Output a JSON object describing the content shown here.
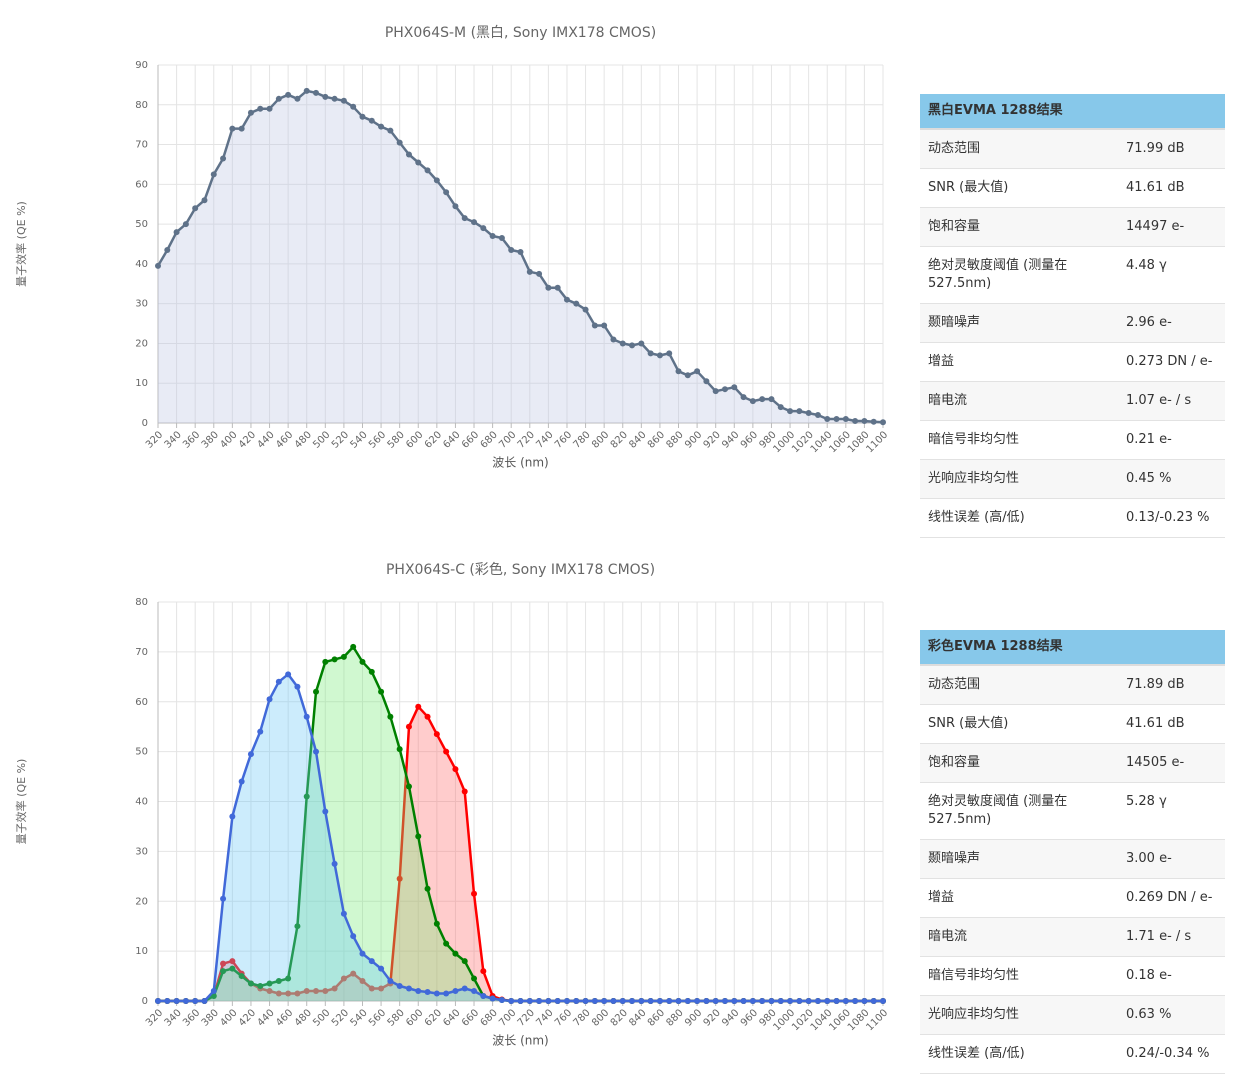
{
  "chart_data": [
    {
      "type": "line",
      "title": "PHX064S-M (黑白, Sony IMX178 CMOS)",
      "x_label": "波长 (nm)",
      "y_label": "量子效率 (QE %)",
      "x": [
        320,
        330,
        340,
        350,
        360,
        370,
        380,
        390,
        400,
        410,
        420,
        430,
        440,
        450,
        460,
        470,
        480,
        490,
        500,
        510,
        520,
        530,
        540,
        550,
        560,
        570,
        580,
        590,
        600,
        610,
        620,
        630,
        640,
        650,
        660,
        670,
        680,
        690,
        700,
        710,
        720,
        730,
        740,
        750,
        760,
        770,
        780,
        790,
        800,
        810,
        820,
        830,
        840,
        850,
        860,
        870,
        880,
        890,
        900,
        910,
        920,
        930,
        940,
        950,
        960,
        970,
        980,
        990,
        1000,
        1010,
        1020,
        1030,
        1040,
        1050,
        1060,
        1070,
        1080,
        1090,
        1100
      ],
      "series": [
        {
          "color": "#5f7289",
          "fill": "rgba(190,198,225,0.35)",
          "values": [
            39.5,
            43.5,
            48,
            50,
            54,
            56,
            62.5,
            66.5,
            74,
            74,
            78,
            79,
            79,
            81.5,
            82.5,
            81.5,
            83.5,
            83,
            82,
            81.5,
            81,
            79.5,
            77,
            76,
            74.5,
            73.5,
            70.5,
            67.5,
            65.5,
            63.5,
            61,
            58,
            54.5,
            51.5,
            50.5,
            49,
            47,
            46.5,
            43.5,
            43,
            38,
            37.5,
            34,
            34,
            31,
            30,
            28.5,
            24.5,
            24.5,
            21,
            20,
            19.5,
            20,
            17.5,
            17,
            17.5,
            13,
            12,
            13,
            10.5,
            8,
            8.5,
            9,
            6.5,
            5.5,
            6,
            6,
            4,
            3,
            3,
            2.5,
            2,
            1,
            1,
            1,
            0.5,
            0.5,
            0.3,
            0.2
          ]
        }
      ],
      "xlim": [
        320,
        1100
      ],
      "ylim": [
        0,
        90
      ],
      "xticks": [
        320,
        340,
        360,
        380,
        400,
        420,
        440,
        460,
        480,
        500,
        520,
        540,
        560,
        580,
        600,
        620,
        640,
        660,
        680,
        700,
        720,
        740,
        760,
        780,
        800,
        820,
        840,
        860,
        880,
        900,
        920,
        940,
        960,
        980,
        1000,
        1020,
        1040,
        1060,
        1080,
        1100
      ],
      "yticks": [
        0,
        10,
        20,
        30,
        40,
        50,
        60,
        70,
        80,
        90
      ],
      "grid": true
    },
    {
      "type": "line",
      "title": "PHX064S-C (彩色, Sony IMX178 CMOS)",
      "x_label": "波长 (nm)",
      "y_label": "量子效率 (QE %)",
      "x": [
        320,
        330,
        340,
        350,
        360,
        370,
        380,
        390,
        400,
        410,
        420,
        430,
        440,
        450,
        460,
        470,
        480,
        490,
        500,
        510,
        520,
        530,
        540,
        550,
        560,
        570,
        580,
        590,
        600,
        610,
        620,
        630,
        640,
        650,
        660,
        670,
        680,
        690,
        700,
        710,
        720,
        730,
        740,
        750,
        760,
        770,
        780,
        790,
        800,
        810,
        820,
        830,
        840,
        850,
        860,
        870,
        880,
        890,
        900,
        910,
        920,
        930,
        940,
        950,
        960,
        970,
        980,
        990,
        1000,
        1010,
        1020,
        1030,
        1040,
        1050,
        1060,
        1070,
        1080,
        1090,
        1100
      ],
      "series": [
        {
          "color": "#ff0000",
          "fill": "rgba(255,110,110,0.35)",
          "values": [
            0,
            0,
            0,
            0,
            0,
            0,
            1,
            7.5,
            8,
            5.5,
            3.5,
            2.5,
            2,
            1.5,
            1.5,
            1.5,
            2,
            2,
            2,
            2.5,
            4.5,
            5.5,
            4,
            2.5,
            2.5,
            3.5,
            24.5,
            55,
            59,
            57,
            53.5,
            50,
            46.5,
            42,
            21.5,
            6,
            1,
            0.3,
            0,
            0,
            0,
            0,
            0,
            0,
            0,
            0,
            0,
            0,
            0,
            0,
            0,
            0,
            0,
            0,
            0,
            0,
            0,
            0,
            0,
            0,
            0,
            0,
            0,
            0,
            0,
            0,
            0,
            0,
            0,
            0,
            0,
            0,
            0,
            0,
            0,
            0,
            0,
            0,
            0
          ]
        },
        {
          "color": "#008000",
          "fill": "rgba(120,235,120,0.35)",
          "values": [
            0,
            0,
            0,
            0,
            0,
            0,
            1,
            6,
            6.5,
            5,
            3.5,
            3,
            3.5,
            4,
            4.5,
            15,
            41,
            62,
            68,
            68.5,
            69,
            71,
            68,
            66,
            62,
            57,
            50.5,
            43,
            33,
            22.5,
            15.5,
            11.5,
            9.5,
            8,
            4.5,
            1,
            0.5,
            0.2,
            0,
            0,
            0,
            0,
            0,
            0,
            0,
            0,
            0,
            0,
            0,
            0,
            0,
            0,
            0,
            0,
            0,
            0,
            0,
            0,
            0,
            0,
            0,
            0,
            0,
            0,
            0,
            0,
            0,
            0,
            0,
            0,
            0,
            0,
            0,
            0,
            0,
            0,
            0,
            0,
            0
          ]
        },
        {
          "color": "#4169d9",
          "fill": "rgba(110,200,245,0.35)",
          "values": [
            0,
            0,
            0,
            0,
            0,
            0,
            2,
            20.5,
            37,
            44,
            49.5,
            54,
            60.5,
            64,
            65.5,
            63,
            57,
            50,
            38,
            27.5,
            17.5,
            13,
            9.5,
            8,
            6.5,
            4,
            3,
            2.5,
            2,
            1.8,
            1.5,
            1.5,
            2,
            2.5,
            2,
            1,
            0.5,
            0.2,
            0,
            0,
            0,
            0,
            0,
            0,
            0,
            0,
            0,
            0,
            0,
            0,
            0,
            0,
            0,
            0,
            0,
            0,
            0,
            0,
            0,
            0,
            0,
            0,
            0,
            0,
            0,
            0,
            0,
            0,
            0,
            0,
            0,
            0,
            0,
            0,
            0,
            0,
            0,
            0,
            0
          ]
        }
      ],
      "xlim": [
        320,
        1100
      ],
      "ylim": [
        0,
        80
      ],
      "xticks": [
        320,
        340,
        360,
        380,
        400,
        420,
        440,
        460,
        480,
        500,
        520,
        540,
        560,
        580,
        600,
        620,
        640,
        660,
        680,
        700,
        720,
        740,
        760,
        780,
        800,
        820,
        840,
        860,
        880,
        900,
        920,
        940,
        960,
        980,
        1000,
        1020,
        1040,
        1060,
        1080,
        1100
      ],
      "yticks": [
        0,
        10,
        20,
        30,
        40,
        50,
        60,
        70,
        80
      ],
      "grid": true
    }
  ],
  "tables": [
    {
      "title": "黑白EVMA 1288结果",
      "rows": [
        [
          "动态范围",
          "71.99 dB"
        ],
        [
          "SNR (最大值)",
          "41.61 dB"
        ],
        [
          "饱和容量",
          "14497 e-"
        ],
        [
          "绝对灵敏度阈值 (测量在 527.5nm)",
          "4.48 γ"
        ],
        [
          "颞暗噪声",
          "2.96 e-"
        ],
        [
          "增益",
          "0.273 DN / e-"
        ],
        [
          "暗电流",
          "1.07 e- / s"
        ],
        [
          "暗信号非均匀性",
          "0.21 e-"
        ],
        [
          "光响应非均匀性",
          "0.45 %"
        ],
        [
          "线性误差 (高/低)",
          "0.13/-0.23 %"
        ]
      ]
    },
    {
      "title": "彩色EVMA 1288结果",
      "rows": [
        [
          "动态范围",
          "71.89 dB"
        ],
        [
          "SNR (最大值)",
          "41.61 dB"
        ],
        [
          "饱和容量",
          "14505 e-"
        ],
        [
          "绝对灵敏度阈值 (测量在 527.5nm)",
          "5.28 γ"
        ],
        [
          "颞暗噪声",
          "3.00 e-"
        ],
        [
          "增益",
          "0.269 DN / e-"
        ],
        [
          "暗电流",
          "1.71 e- / s"
        ],
        [
          "暗信号非均匀性",
          "0.18 e-"
        ],
        [
          "光响应非均匀性",
          "0.63 %"
        ],
        [
          "线性误差 (高/低)",
          "0.24/-0.34 %"
        ]
      ]
    }
  ]
}
